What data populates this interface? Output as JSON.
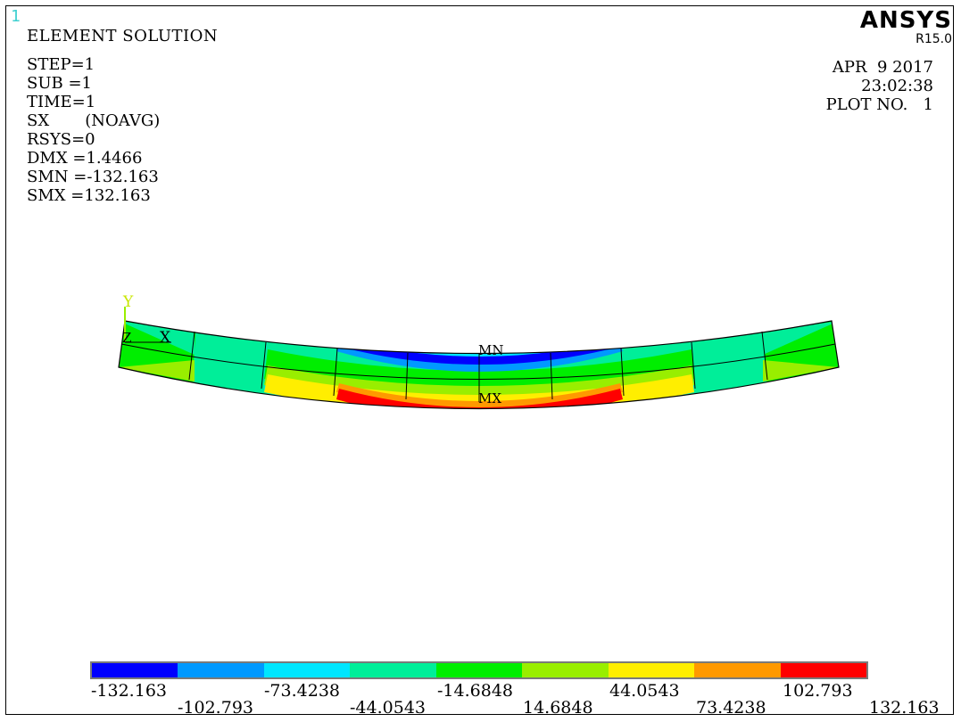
{
  "window_number": "1",
  "title": "ELEMENT SOLUTION",
  "info_lines": [
    "STEP=1",
    "SUB =1",
    "TIME=1",
    "SX       (NOAVG)",
    "RSYS=0",
    "DMX =1.4466",
    "SMN =-132.163",
    "SMX =132.163"
  ],
  "brand": "ANSYS",
  "version": "R15.0",
  "date_lines": [
    "APR  9 2017",
    "23:02:38",
    "PLOT NO.   1"
  ],
  "triad": {
    "y_label": "Y",
    "x_label": "X",
    "z_label": "Z"
  },
  "markers": {
    "min_label": "MN",
    "max_label": "MX"
  },
  "legend": {
    "colors": [
      "#0000ff",
      "#0099ff",
      "#00e6ff",
      "#00ee99",
      "#00ee00",
      "#99ee00",
      "#ffee00",
      "#ff9900",
      "#ff0000"
    ],
    "upper_labels": [
      "-132.163",
      "-73.4238",
      "-14.6848",
      "44.0543",
      "102.793"
    ],
    "lower_labels": [
      "-102.793",
      "-44.0543",
      "14.6848",
      "73.4238",
      "132.163"
    ]
  }
}
